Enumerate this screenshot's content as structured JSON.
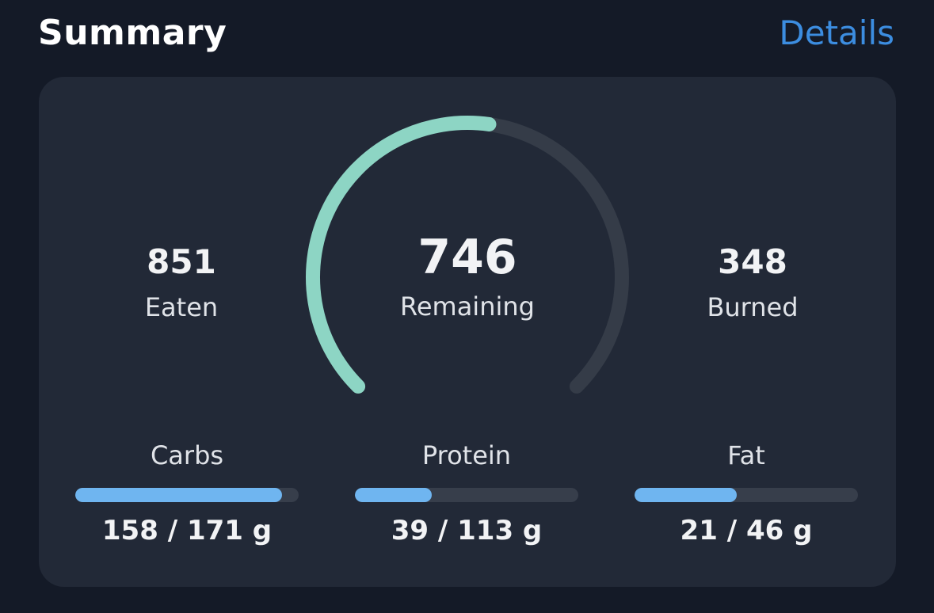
{
  "header": {
    "title": "Summary",
    "details_link": "Details"
  },
  "summary": {
    "eaten": {
      "value": "851",
      "label": "Eaten"
    },
    "remaining": {
      "value": "746",
      "label": "Remaining",
      "progress_fraction": 0.53
    },
    "burned": {
      "value": "348",
      "label": "Burned"
    }
  },
  "macros": [
    {
      "label": "Carbs",
      "value_text": "158 / 171 g",
      "consumed": 158,
      "goal": 171
    },
    {
      "label": "Protein",
      "value_text": "39 / 113 g",
      "consumed": 39,
      "goal": 113
    },
    {
      "label": "Fat",
      "value_text": "21 / 46 g",
      "consumed": 21,
      "goal": 46
    }
  ],
  "colors": {
    "background": "#141a27",
    "card": "#222937",
    "accent_link": "#3c8de0",
    "ring_progress": "#8dd5c4",
    "ring_track": "#353c48",
    "bar_fill": "#6fb5f0",
    "bar_track": "#373e4b"
  }
}
